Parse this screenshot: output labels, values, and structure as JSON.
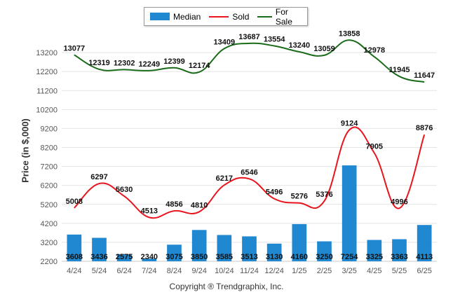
{
  "chart_data": {
    "type": "bar+line",
    "ylabel": "Price (in $,000)",
    "ylim": [
      2200,
      14200
    ],
    "yticks": [
      2200,
      3200,
      4200,
      5200,
      6200,
      7200,
      8200,
      9200,
      10200,
      11200,
      12200,
      13200
    ],
    "categories": [
      "4/24",
      "5/24",
      "6/24",
      "7/24",
      "8/24",
      "9/24",
      "10/24",
      "11/24",
      "12/24",
      "1/25",
      "2/25",
      "3/25",
      "4/25",
      "5/25",
      "6/25"
    ],
    "series": [
      {
        "name": "Median",
        "kind": "bar",
        "color": "#1f88d0",
        "values": [
          3608,
          3436,
          2575,
          2340,
          3075,
          3850,
          3585,
          3513,
          3130,
          4160,
          3250,
          7254,
          3325,
          3363,
          4113
        ]
      },
      {
        "name": "Sold",
        "kind": "line",
        "color": "#e8141e",
        "values": [
          5008,
          6297,
          5630,
          4513,
          4856,
          4810,
          6217,
          6546,
          5496,
          5276,
          5376,
          9124,
          7905,
          4996,
          8876
        ]
      },
      {
        "name": "For Sale",
        "kind": "line",
        "color": "#1a6b1a",
        "values": [
          13077,
          12319,
          12302,
          12249,
          12399,
          12174,
          13409,
          13687,
          13554,
          13240,
          13059,
          13858,
          12978,
          11945,
          11647
        ]
      }
    ],
    "grid": true,
    "legend_position": "top-center"
  },
  "footer": "Copyright ® Trendgraphix, Inc."
}
